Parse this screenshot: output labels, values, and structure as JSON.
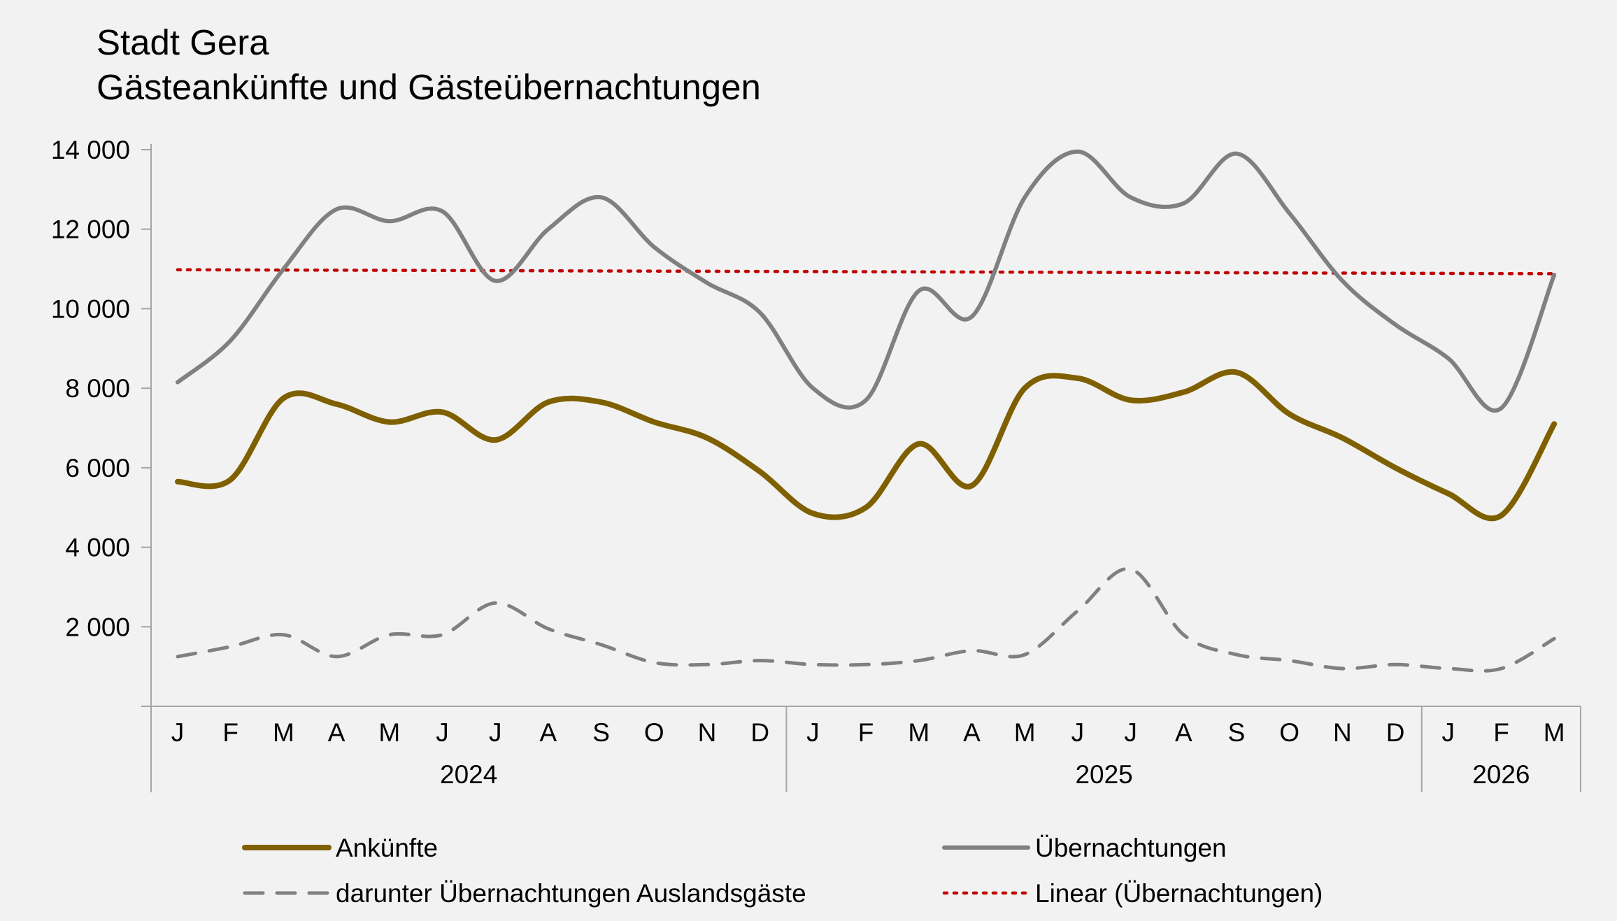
{
  "chart_data": {
    "type": "line",
    "title": "Stadt Gera",
    "subtitle": "Gästeankünfte und Gästeübernachtungen",
    "xlabel": "",
    "ylabel": "",
    "ylim": [
      0,
      14000
    ],
    "yticks": [
      0,
      2000,
      4000,
      6000,
      8000,
      10000,
      12000,
      14000
    ],
    "ytick_labels": [
      "",
      "2 000",
      "4 000",
      "6 000",
      "8 000",
      "10 000",
      "12 000",
      "14 000"
    ],
    "months": [
      "J",
      "F",
      "M",
      "A",
      "M",
      "J",
      "J",
      "A",
      "S",
      "O",
      "N",
      "D",
      "J",
      "F",
      "M",
      "A",
      "M",
      "J",
      "J",
      "A",
      "S",
      "O",
      "N",
      "D",
      "J",
      "F",
      "M"
    ],
    "years": [
      {
        "label": "2024",
        "months": 12
      },
      {
        "label": "2025",
        "months": 12
      },
      {
        "label": "2026",
        "months": 3
      }
    ],
    "grid": false,
    "legend_position": "bottom",
    "series": [
      {
        "name": "Ankünfte",
        "color": "#7f6000",
        "style": "solid",
        "values": [
          5650,
          5700,
          7750,
          7600,
          7150,
          7400,
          6700,
          7650,
          7650,
          7150,
          6750,
          5900,
          4850,
          5000,
          6600,
          5550,
          8000,
          8250,
          7700,
          7900,
          8400,
          7350,
          6750,
          6000,
          5350,
          4800,
          7100
        ]
      },
      {
        "name": "Übernachtungen",
        "color": "#808080",
        "style": "solid",
        "values": [
          8150,
          9200,
          11000,
          12500,
          12200,
          12450,
          10700,
          12000,
          12800,
          11550,
          10650,
          9900,
          8000,
          7700,
          10450,
          9800,
          12800,
          13950,
          12800,
          12650,
          13900,
          12400,
          10700,
          9600,
          8750,
          7500,
          10850
        ]
      },
      {
        "name": "darunter Übernachtungen Auslandsgäste",
        "color": "#808080",
        "style": "dashed",
        "values": [
          1250,
          1500,
          1800,
          1250,
          1800,
          1800,
          2600,
          1950,
          1550,
          1100,
          1050,
          1150,
          1050,
          1050,
          1150,
          1400,
          1300,
          2400,
          3450,
          1800,
          1300,
          1150,
          950,
          1050,
          950,
          950,
          1700
        ]
      },
      {
        "name": "Linear (Übernachtungen)",
        "color": "#c00000",
        "style": "dotted",
        "trend_start": 10980,
        "trend_end": 10880
      }
    ]
  }
}
